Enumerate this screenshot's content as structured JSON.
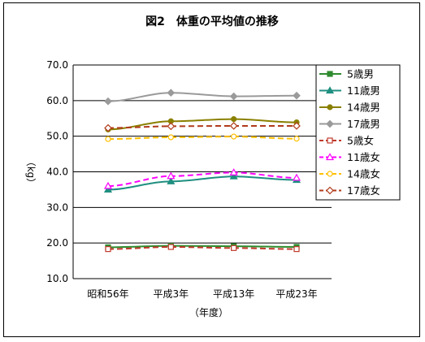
{
  "chart_data": {
    "type": "line",
    "title": "図2　体重の平均値の推移",
    "xlabel": "（年度）",
    "ylabel": "（kg）",
    "categories": [
      "昭和56年",
      "平成3年",
      "平成13年",
      "平成23年"
    ],
    "ylim": [
      10,
      70
    ],
    "yticks": [
      "10.0",
      "20.0",
      "30.0",
      "40.0",
      "50.0",
      "60.0",
      "70.0"
    ],
    "grid": "horizontal",
    "legend": "right",
    "series": [
      {
        "name": "5歳男",
        "values": [
          18.8,
          19.2,
          19.1,
          18.9
        ],
        "color": "#2e8b2e",
        "marker": "square",
        "filled": true,
        "dashed": false
      },
      {
        "name": "11歳男",
        "values": [
          35.0,
          37.3,
          38.7,
          37.7
        ],
        "color": "#1f8f80",
        "marker": "triangle",
        "filled": true,
        "dashed": false
      },
      {
        "name": "14歳男",
        "values": [
          51.9,
          54.2,
          54.8,
          53.9
        ],
        "color": "#8a8000",
        "marker": "circle",
        "filled": true,
        "dashed": false
      },
      {
        "name": "17歳男",
        "values": [
          59.8,
          62.2,
          61.2,
          61.4
        ],
        "color": "#9a9a9a",
        "marker": "diamond",
        "filled": true,
        "dashed": false
      },
      {
        "name": "5歳女",
        "values": [
          18.3,
          18.9,
          18.6,
          18.3
        ],
        "color": "#c0392b",
        "marker": "square",
        "filled": false,
        "dashed": true
      },
      {
        "name": "11歳女",
        "values": [
          36.0,
          38.8,
          39.8,
          38.3
        ],
        "color": "#ff00ff",
        "marker": "triangle",
        "filled": false,
        "dashed": true
      },
      {
        "name": "14歳女",
        "values": [
          49.2,
          49.7,
          49.9,
          49.3
        ],
        "color": "#ffc000",
        "marker": "circle",
        "filled": false,
        "dashed": true
      },
      {
        "name": "17歳女",
        "values": [
          52.3,
          52.8,
          52.9,
          52.9
        ],
        "color": "#b03a1a",
        "marker": "diamond",
        "filled": false,
        "dashed": true
      }
    ]
  }
}
